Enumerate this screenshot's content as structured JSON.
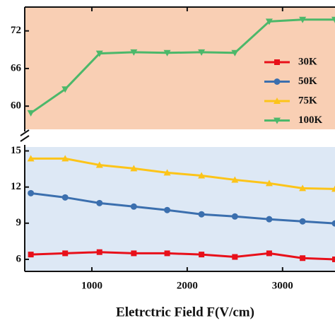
{
  "chart_data": {
    "type": "line",
    "xlabel": "Eletrctric Field F(V/cm)",
    "x": [
      360,
      720,
      1080,
      1440,
      1790,
      2150,
      2500,
      2860,
      3210,
      3550
    ],
    "series": [
      {
        "name": "30K",
        "color": "#e8101a",
        "marker": "square",
        "values": [
          6.4,
          6.5,
          6.6,
          6.5,
          6.5,
          6.4,
          6.2,
          6.5,
          6.1,
          6.0
        ]
      },
      {
        "name": "50K",
        "color": "#3b6fae",
        "marker": "circle",
        "values": [
          11.49,
          11.14,
          10.67,
          10.38,
          10.09,
          9.74,
          9.56,
          9.33,
          9.15,
          8.98
        ]
      },
      {
        "name": "75K",
        "color": "#fcc419",
        "marker": "triangle-up",
        "values": [
          14.36,
          14.36,
          13.83,
          13.54,
          13.19,
          12.95,
          12.6,
          12.31,
          11.9,
          11.84
        ]
      },
      {
        "name": "100K",
        "color": "#4cb86a",
        "marker": "triangle-down",
        "axis": "y2",
        "values": [
          58.9,
          62.7,
          68.4,
          68.6,
          68.5,
          68.6,
          68.5,
          73.5,
          73.8,
          73.8
        ]
      }
    ],
    "xlim": [
      296,
      3550
    ],
    "xticks": [
      1000,
      2000,
      3000
    ],
    "ylim": [
      5,
      15.5
    ],
    "yticks": [
      6,
      9,
      12,
      15
    ],
    "y2lim": [
      56.3,
      75.8
    ],
    "y2ticks": [
      60,
      66,
      72
    ],
    "legend": "right"
  }
}
